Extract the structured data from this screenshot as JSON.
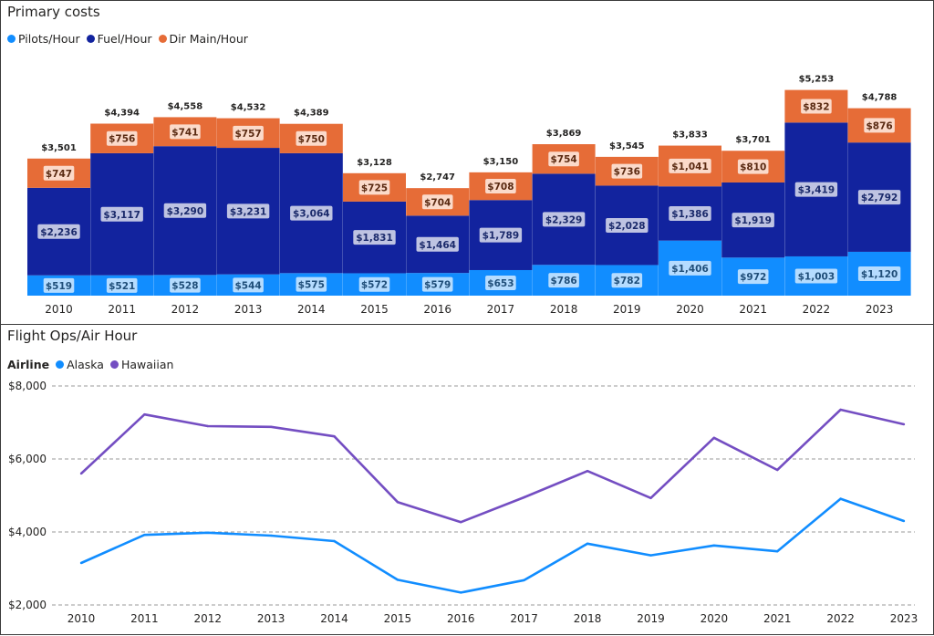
{
  "charts": {
    "primary": {
      "title": "Primary costs",
      "legend": [
        {
          "label": "Pilots/Hour",
          "color": "#118DFF"
        },
        {
          "label": "Fuel/Hour",
          "color": "#12239E"
        },
        {
          "label": "Dir Main/Hour",
          "color": "#E66C37"
        }
      ]
    },
    "flight": {
      "title": "Flight Ops/Air Hour",
      "legend_title": "Airline",
      "legend": [
        {
          "label": "Alaska",
          "color": "#118DFF"
        },
        {
          "label": "Hawaiian",
          "color": "#744EC2"
        }
      ]
    }
  },
  "chart_data": [
    {
      "type": "bar",
      "stacked": true,
      "title": "Primary costs",
      "categories": [
        "2010",
        "2011",
        "2012",
        "2013",
        "2014",
        "2015",
        "2016",
        "2017",
        "2018",
        "2019",
        "2020",
        "2021",
        "2022",
        "2023"
      ],
      "series": [
        {
          "name": "Pilots/Hour",
          "color": "#118DFF",
          "values": [
            519,
            521,
            528,
            544,
            575,
            572,
            579,
            653,
            786,
            782,
            1406,
            972,
            1003,
            1120
          ],
          "labels": [
            "$519",
            "$521",
            "$528",
            "$544",
            "$575",
            "$572",
            "$579",
            "$653",
            "$786",
            "$782",
            "$1,406",
            "$972",
            "$1,003",
            "$1,120"
          ]
        },
        {
          "name": "Fuel/Hour",
          "color": "#12239E",
          "values": [
            2236,
            3117,
            3290,
            3231,
            3064,
            1831,
            1464,
            1789,
            2329,
            2028,
            1386,
            1919,
            3419,
            2792
          ],
          "labels": [
            "$2,236",
            "$3,117",
            "$3,290",
            "$3,231",
            "$3,064",
            "$1,831",
            "$1,464",
            "$1,789",
            "$2,329",
            "$2,028",
            "$1,386",
            "$1,919",
            "$3,419",
            "$2,792"
          ]
        },
        {
          "name": "Dir Main/Hour",
          "color": "#E66C37",
          "values": [
            747,
            756,
            741,
            757,
            750,
            725,
            704,
            708,
            754,
            736,
            1041,
            810,
            832,
            876
          ],
          "labels": [
            "$747",
            "$756",
            "$741",
            "$757",
            "$750",
            "$725",
            "$704",
            "$708",
            "$754",
            "$736",
            "$1,041",
            "$810",
            "$832",
            "$876"
          ]
        }
      ],
      "totals": [
        3501,
        4394,
        4558,
        4532,
        4389,
        3128,
        2747,
        3150,
        3869,
        3545,
        3833,
        3701,
        5253,
        4788
      ],
      "total_labels": [
        "$3,501",
        "$4,394",
        "$4,558",
        "$4,532",
        "$4,389",
        "$3,128",
        "$2,747",
        "$3,150",
        "$3,869",
        "$3,545",
        "$3,833",
        "$3,701",
        "$5,253",
        "$4,788"
      ],
      "xlabel": "",
      "ylabel": "",
      "ylim": [
        0,
        5500
      ],
      "legend_position": "top-left"
    },
    {
      "type": "line",
      "title": "Flight Ops/Air Hour",
      "x": [
        "2010",
        "2011",
        "2012",
        "2013",
        "2014",
        "2015",
        "2016",
        "2017",
        "2018",
        "2019",
        "2020",
        "2021",
        "2022",
        "2023"
      ],
      "legend_title": "Airline",
      "series": [
        {
          "name": "Alaska",
          "color": "#118DFF",
          "values": [
            3150,
            3920,
            3980,
            3900,
            3750,
            2690,
            2340,
            2680,
            3680,
            3360,
            3630,
            3470,
            4910,
            4300
          ]
        },
        {
          "name": "Hawaiian",
          "color": "#744EC2",
          "values": [
            5600,
            7220,
            6900,
            6880,
            6620,
            4820,
            4270,
            4950,
            5670,
            4930,
            6580,
            5700,
            7350,
            6950
          ]
        }
      ],
      "yticks": [
        2000,
        4000,
        6000,
        8000
      ],
      "ytick_labels": [
        "$2,000",
        "$4,000",
        "$6,000",
        "$8,000"
      ],
      "ylim": [
        2000,
        8000
      ],
      "grid": true,
      "legend_position": "top-left"
    }
  ]
}
